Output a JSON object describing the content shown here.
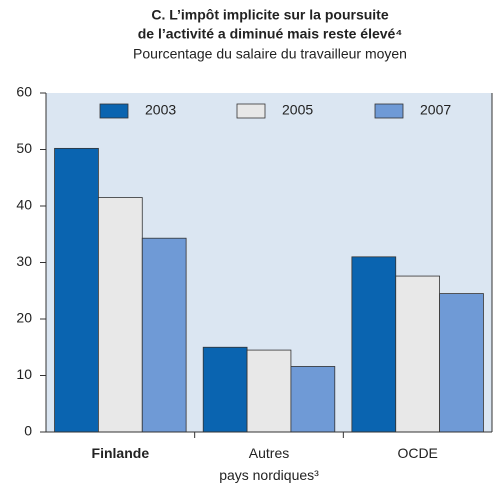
{
  "chart_data": {
    "type": "bar",
    "title": [
      "C. L’impôt implicite sur la poursuite",
      "de l’activité a diminué mais reste élevé⁴"
    ],
    "subtitle": "Pourcentage du salaire du travailleur moyen",
    "categories": [
      "Finlande",
      "Autres\npays nordiques³",
      "OCDE"
    ],
    "series": [
      {
        "name": "2003",
        "color": "#0a64b0",
        "values": [
          50.2,
          15,
          31
        ]
      },
      {
        "name": "2005",
        "color": "#e8e8e8",
        "values": [
          41.5,
          14.5,
          27.6
        ]
      },
      {
        "name": "2007",
        "color": "#6f9ad6",
        "values": [
          34.3,
          11.6,
          24.5
        ]
      }
    ],
    "ylim": [
      0,
      60
    ],
    "yticks": [
      0,
      10,
      20,
      30,
      40,
      50,
      60
    ],
    "grid": false,
    "legend": "top"
  }
}
